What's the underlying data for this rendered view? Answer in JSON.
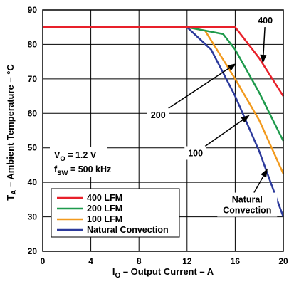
{
  "chart_data": {
    "type": "line",
    "xlabel": {
      "main": "I",
      "sub": "O",
      "rest": " – Output Current – A"
    },
    "ylabel": {
      "main": "T",
      "sub": "A",
      "rest": " – Ambient Temperature – °C"
    },
    "xlim": [
      0,
      20
    ],
    "ylim": [
      20,
      90
    ],
    "xticks": [
      "0",
      "4",
      "8",
      "12",
      "16",
      "20"
    ],
    "yticks": [
      "20",
      "30",
      "40",
      "50",
      "60",
      "70",
      "80",
      "90"
    ],
    "grid": true,
    "legend_position": "bottom-left",
    "conditions": [
      {
        "main": "V",
        "sub": "O",
        "rest": " = 1.2 V"
      },
      {
        "main": "f",
        "sub": "SW",
        "rest": " = 500 kHz"
      }
    ],
    "series": [
      {
        "name": "400 LFM",
        "color": "#e8202a",
        "points": [
          [
            0,
            85
          ],
          [
            12,
            85
          ],
          [
            16,
            85
          ],
          [
            18,
            76
          ],
          [
            20,
            65
          ]
        ]
      },
      {
        "name": "200 LFM",
        "color": "#1e9a4c",
        "points": [
          [
            0,
            85
          ],
          [
            12,
            85
          ],
          [
            15,
            83
          ],
          [
            16,
            78.5
          ],
          [
            18,
            66
          ],
          [
            20,
            52
          ]
        ]
      },
      {
        "name": "100 LFM",
        "color": "#f29a1e",
        "points": [
          [
            0,
            85
          ],
          [
            12,
            85
          ],
          [
            13.5,
            84
          ],
          [
            16,
            70
          ],
          [
            18,
            58
          ],
          [
            20,
            42.5
          ]
        ]
      },
      {
        "name": "Natural Convection",
        "color": "#2c3a9c",
        "points": [
          [
            0,
            85
          ],
          [
            12,
            85
          ],
          [
            14,
            78.5
          ],
          [
            16,
            65
          ],
          [
            18,
            49
          ],
          [
            20,
            30
          ]
        ]
      }
    ],
    "annotations": [
      {
        "text": "400",
        "label": [
          18.5,
          87
        ],
        "arrow_to": [
          18.3,
          74.5
        ]
      },
      {
        "text": "200",
        "label": [
          9.6,
          59.5
        ],
        "arrow_to": [
          16.1,
          74.5
        ]
      },
      {
        "text": "100",
        "label": [
          12.7,
          48.5
        ],
        "arrow_to": [
          17.2,
          59.5
        ]
      },
      {
        "text": "Natural\nConvection",
        "label": [
          17,
          33.5
        ],
        "arrow_to": [
          18.7,
          44
        ]
      }
    ]
  }
}
